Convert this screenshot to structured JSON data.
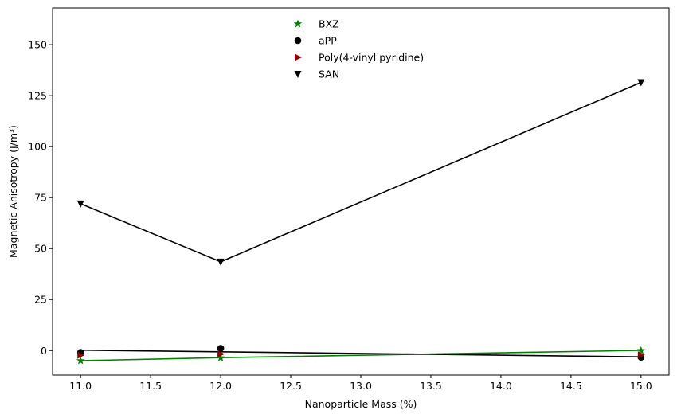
{
  "chart_data": {
    "type": "scatter",
    "title": "",
    "xlabel": "Nanoparticle Mass (%)",
    "ylabel": "Magnetic Anisotropy (J/m³)",
    "xlim": [
      10.8,
      15.2
    ],
    "ylim": [
      -12,
      168
    ],
    "xticks": [
      11.0,
      11.5,
      12.0,
      12.5,
      13.0,
      13.5,
      14.0,
      14.5,
      15.0
    ],
    "xtick_labels": [
      "11.0",
      "11.5",
      "12.0",
      "12.5",
      "13.0",
      "13.5",
      "14.0",
      "14.5",
      "15.0"
    ],
    "yticks": [
      0,
      25,
      50,
      75,
      100,
      125,
      150
    ],
    "ytick_labels": [
      "0",
      "25",
      "50",
      "75",
      "100",
      "125",
      "150"
    ],
    "grid": false,
    "legend_position": "upper-center",
    "series": [
      {
        "name": "BXZ",
        "marker": "star",
        "color": "#008000",
        "x": [
          11,
          12,
          15
        ],
        "y": [
          -5,
          -3.6,
          0
        ],
        "fit_line": {
          "x": [
            11,
            12,
            15
          ],
          "y": [
            -5,
            -3.5,
            0.1
          ],
          "color": "#008000"
        }
      },
      {
        "name": "aPP",
        "marker": "circle",
        "color": "#000000",
        "x": [
          11,
          12,
          15
        ],
        "y": [
          -0.9,
          1.1,
          -3.3
        ],
        "fit_line": {
          "x": [
            11,
            12,
            15
          ],
          "y": [
            0.2,
            -0.6,
            -3.1
          ],
          "color": "#000000"
        }
      },
      {
        "name": "Poly(4-vinyl pyridine)",
        "marker": "triangle-right",
        "color": "#8b0000",
        "x": [
          11,
          12,
          15
        ],
        "y": [
          -2.3,
          -1.7,
          -2.1
        ],
        "fit_line": null
      },
      {
        "name": "SAN",
        "marker": "triangle-down",
        "color": "#000000",
        "x": [
          11,
          12,
          15
        ],
        "y": [
          72,
          43.5,
          131.5
        ],
        "fit_line": {
          "x": [
            11,
            12,
            15
          ],
          "y": [
            72,
            43.5,
            131.5
          ],
          "color": "#000000"
        }
      }
    ]
  }
}
